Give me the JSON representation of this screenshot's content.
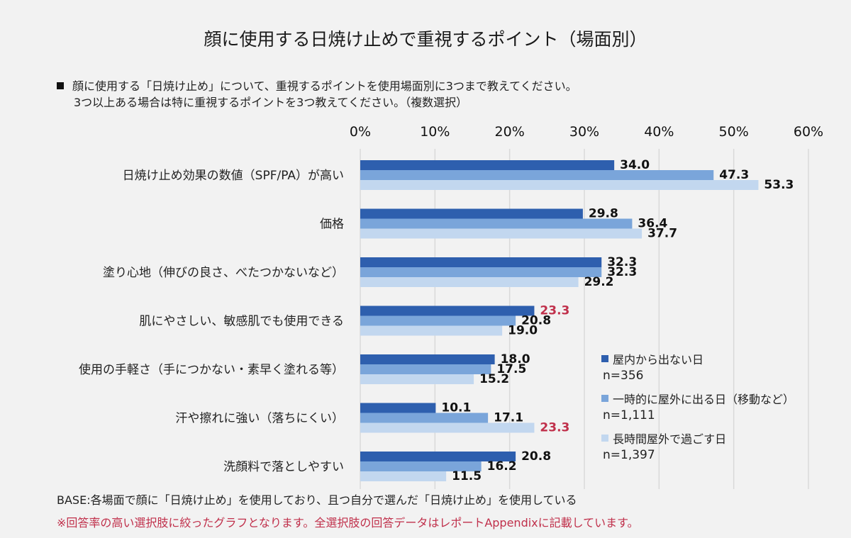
{
  "title": "顔に使用する日焼け止めで重視するポイント（場面別）",
  "question": {
    "line1": "顔に使用する「日焼け止め」について、重視するポイントを使用場面別に3つまで教えてください。",
    "line2": "3つ以上ある場合は特に重視するポイントを3つ教えてください。（複数選択）"
  },
  "notes": {
    "base": "BASE:各場面で顔に「日焼け止め」を使用しており、且つ自分で選んだ「日焼け止め」を使用している",
    "red": "※回答率の高い選択肢に絞ったグラフとなります。全選択肢の回答データはレポートAppendixに記載しています。"
  },
  "colors": {
    "series1": "#2e5fae",
    "series2": "#7aa5da",
    "series3": "#c2d7ef",
    "highlight": "#c0304b",
    "grid": "#d9d9d9"
  },
  "chart_data": {
    "type": "bar",
    "orientation": "horizontal",
    "xlim": [
      0,
      60
    ],
    "ticks": [
      "0%",
      "10%",
      "20%",
      "30%",
      "40%",
      "50%",
      "60%"
    ],
    "tick_values": [
      0,
      10,
      20,
      30,
      40,
      50,
      60
    ],
    "categories": [
      "日焼け止め効果の数値（SPF/PA）が高い",
      "価格",
      "塗り心地（伸びの良さ、べたつかないなど）",
      "肌にやさしい、敏感肌でも使用できる",
      "使用の手軽さ（手につかない・素早く塗れる等）",
      "汗や擦れに強い（落ちにくい）",
      "洗顔料で落としやすい"
    ],
    "series": [
      {
        "name": "屋内から出ない日",
        "n": "n=356",
        "values": [
          34.0,
          29.8,
          32.3,
          23.3,
          18.0,
          10.1,
          20.8
        ],
        "labels": [
          "34.0",
          "29.8",
          "32.3",
          "23.3",
          "18.0",
          "10.1",
          "20.8"
        ],
        "highlight": [
          false,
          false,
          false,
          true,
          false,
          false,
          false
        ]
      },
      {
        "name": "一時的に屋外に出る日（移動など）",
        "n": "n=1,111",
        "values": [
          47.3,
          36.4,
          32.3,
          20.8,
          17.5,
          17.1,
          16.2
        ],
        "labels": [
          "47.3",
          "36.4",
          "32.3",
          "20.8",
          "17.5",
          "17.1",
          "16.2"
        ],
        "highlight": [
          false,
          false,
          false,
          false,
          false,
          false,
          false
        ]
      },
      {
        "name": "長時間屋外で過ごす日",
        "n": "n=1,397",
        "values": [
          53.3,
          37.7,
          29.2,
          19.0,
          15.2,
          23.3,
          11.5
        ],
        "labels": [
          "53.3",
          "37.7",
          "29.2",
          "19.0",
          "15.2",
          "23.3",
          "11.5"
        ],
        "highlight": [
          false,
          false,
          false,
          false,
          false,
          true,
          false
        ]
      }
    ],
    "legend_position": "bottom-right"
  }
}
